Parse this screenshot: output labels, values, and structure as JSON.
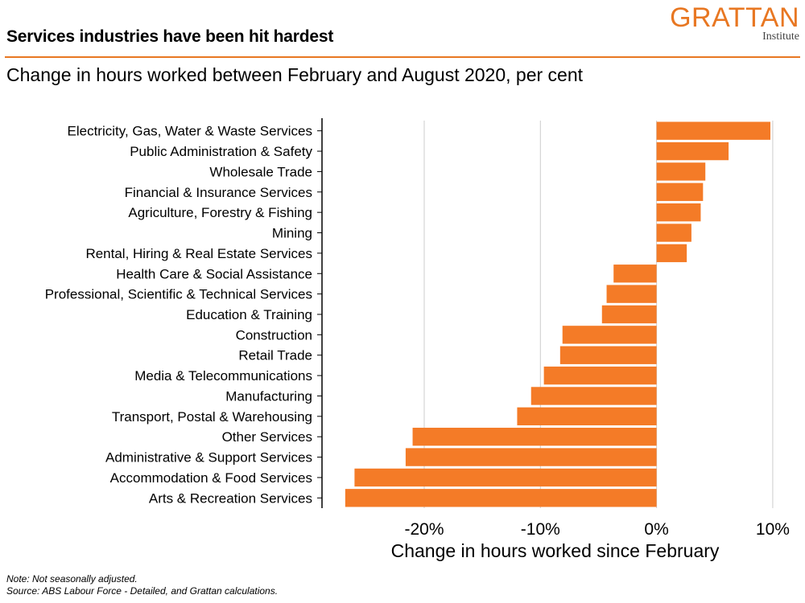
{
  "header": {
    "title": "Services industries have been hit hardest",
    "subtitle": "Change in hours worked between February and August 2020, per cent"
  },
  "logo": {
    "name": "GRATTAN",
    "sub": "Institute"
  },
  "colors": {
    "bar": "#f47b27",
    "accent": "#e87722",
    "grid": "#cccccc",
    "axis": "#000000"
  },
  "chart_data": {
    "type": "bar",
    "orientation": "horizontal",
    "categories": [
      "Electricity, Gas, Water & Waste Services",
      "Public Administration & Safety",
      "Wholesale Trade",
      "Financial & Insurance Services",
      "Agriculture, Forestry & Fishing",
      "Mining",
      "Rental, Hiring & Real Estate Services",
      "Health Care & Social Assistance",
      "Professional, Scientific & Technical Services",
      "Education & Training",
      "Construction",
      "Retail Trade",
      "Media & Telecommunications",
      "Manufacturing",
      "Transport, Postal & Warehousing",
      "Other Services",
      "Administrative & Support Services",
      "Accommodation & Food Services",
      "Arts & Recreation Services"
    ],
    "values": [
      9.8,
      6.2,
      4.2,
      4.0,
      3.8,
      3.0,
      2.6,
      -3.7,
      -4.3,
      -4.7,
      -8.1,
      -8.3,
      -9.7,
      -10.8,
      -12.0,
      -21.0,
      -21.6,
      -26.0,
      -26.8
    ],
    "xlim": [
      -28.8,
      11.6
    ],
    "xticks": [
      -20,
      -10,
      0,
      10
    ],
    "xtick_labels": [
      "-20%",
      "-10%",
      "0%",
      "10%"
    ],
    "xlabel": "Change in hours worked since February",
    "grid": "vertical"
  },
  "notes": {
    "note": "Note: Not seasonally adjusted.",
    "source": "Source: ABS Labour Force - Detailed, and Grattan calculations."
  }
}
